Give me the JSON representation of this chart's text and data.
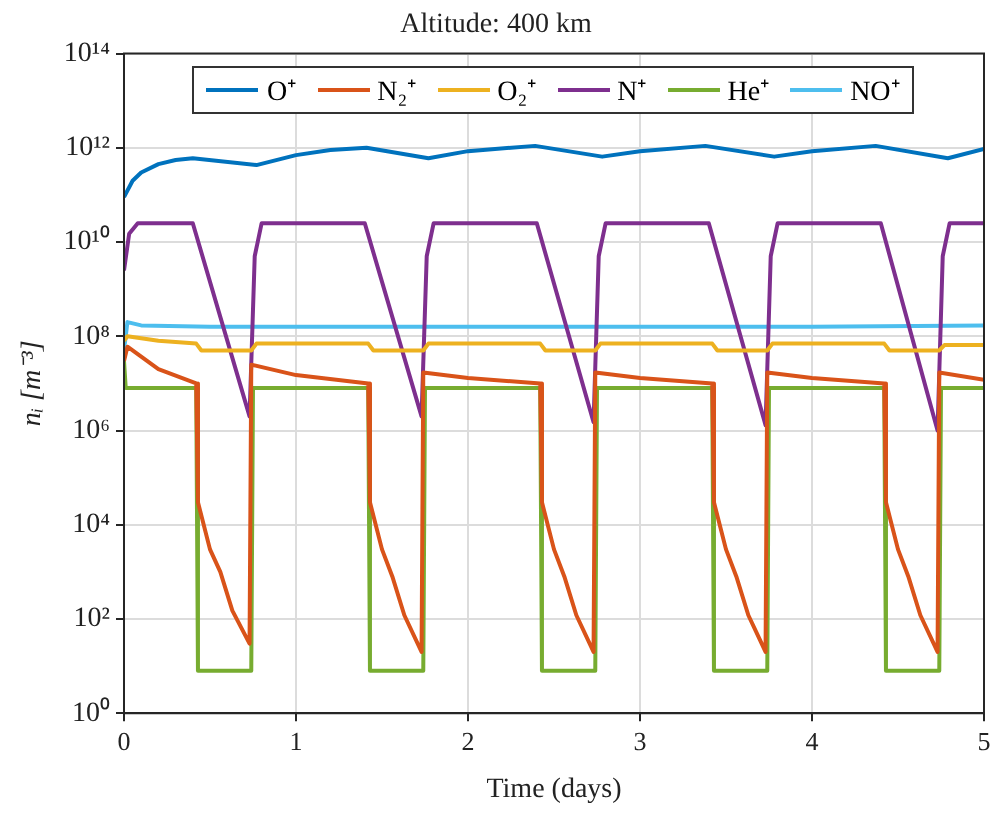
{
  "chart_data": {
    "type": "line",
    "title": "Altitude: 400 km",
    "xlabel": "Time (days)",
    "ylabel": "nᵢ [m⁻³]",
    "log": "y",
    "grid": true,
    "legend": "top",
    "marker": "none",
    "line_style": "solid",
    "xlim": [
      0,
      5
    ],
    "xticks": [
      0,
      1,
      2,
      3,
      4,
      5
    ],
    "ylim": [
      1,
      100000000000000
    ],
    "yticks": [
      {
        "value": 1,
        "label": "10⁰"
      },
      {
        "value": 100,
        "label": "10²"
      },
      {
        "value": 10000,
        "label": "10⁴"
      },
      {
        "value": 1000000,
        "label": "10⁶"
      },
      {
        "value": 100000000,
        "label": "10⁸"
      },
      {
        "value": 10000000000,
        "label": "10¹⁰"
      },
      {
        "value": 1000000000000,
        "label": "10¹²"
      },
      {
        "value": 100000000000000,
        "label": "10¹⁴"
      }
    ],
    "series": [
      {
        "name": "O⁺",
        "color": "#0072bd",
        "x": [
          0,
          0.05,
          0.1,
          0.2,
          0.3,
          0.4,
          0.77,
          1.0,
          1.2,
          1.41,
          1.77,
          2.0,
          2.39,
          2.78,
          3.0,
          3.38,
          3.78,
          4.0,
          4.37,
          4.79,
          5
        ],
        "values": [
          90000000000,
          200000000000,
          300000000000,
          450000000000,
          550000000000,
          600000000000,
          430000000000,
          700000000000,
          900000000000,
          1000000000000,
          600000000000,
          850000000000,
          1100000000000,
          650000000000,
          850000000000,
          1100000000000,
          650000000000,
          850000000000,
          1100000000000,
          600000000000,
          950000000000
        ]
      },
      {
        "name": "N₂⁺",
        "color": "#d95319",
        "x": [
          0,
          0.02,
          0.2,
          0.42,
          0.43,
          0.5,
          0.56,
          0.63,
          0.73,
          0.74,
          1.0,
          1.42,
          1.43,
          1.5,
          1.56,
          1.63,
          1.73,
          1.74,
          2.0,
          2.42,
          2.43,
          2.5,
          2.56,
          2.63,
          2.73,
          2.74,
          3.0,
          3.42,
          3.43,
          3.5,
          3.56,
          3.63,
          3.73,
          3.74,
          4.0,
          4.42,
          4.43,
          4.5,
          4.56,
          4.63,
          4.73,
          4.74,
          5
        ],
        "values": [
          30000000,
          60000000,
          20000000,
          10000000,
          30000,
          3000,
          1000,
          150,
          30,
          25000000,
          15000000,
          10000000,
          30000,
          3000,
          800,
          120,
          20,
          17000000,
          13000000,
          10000000,
          30000,
          3000,
          800,
          120,
          20,
          17000000,
          13000000,
          10000000,
          30000,
          3000,
          800,
          120,
          20,
          17000000,
          13000000,
          10000000,
          30000,
          3000,
          800,
          120,
          20,
          17000000,
          12000000
        ]
      },
      {
        "name": "O₂⁺",
        "color": "#edb120",
        "x": [
          0,
          0.02,
          0.2,
          0.42,
          0.45,
          0.74,
          0.77,
          1.42,
          1.45,
          1.74,
          1.77,
          2.42,
          2.45,
          2.74,
          2.77,
          3.42,
          3.45,
          3.74,
          3.77,
          4.42,
          4.45,
          4.74,
          4.77,
          5
        ],
        "values": [
          80000000,
          100000000,
          80000000,
          70000000,
          50000000,
          50000000,
          70000000,
          70000000,
          50000000,
          50000000,
          70000000,
          70000000,
          50000000,
          50000000,
          70000000,
          70000000,
          50000000,
          50000000,
          70000000,
          70000000,
          50000000,
          50000000,
          65000000,
          65000000
        ]
      },
      {
        "name": "N⁺",
        "color": "#7e2f8e",
        "x": [
          0,
          0.03,
          0.08,
          0.4,
          0.73,
          0.76,
          0.8,
          1.4,
          1.73,
          1.76,
          1.8,
          2.4,
          2.73,
          2.76,
          2.8,
          3.4,
          3.73,
          3.76,
          3.8,
          4.4,
          4.73,
          4.76,
          4.8,
          5
        ],
        "values": [
          2500000000,
          15000000000,
          25000000000,
          25000000000,
          2000000,
          5000000000,
          25000000000,
          25000000000,
          2000000,
          5000000000,
          25000000000,
          25000000000,
          1500000,
          5000000000,
          25000000000,
          25000000000,
          1300000,
          5000000000,
          25000000000,
          25000000000,
          1000000,
          5000000000,
          25000000000,
          25000000000
        ]
      },
      {
        "name": "He⁺",
        "color": "#77ac30",
        "x": [
          0,
          0.01,
          0.42,
          0.43,
          0.74,
          0.75,
          1.42,
          1.43,
          1.74,
          1.75,
          2.42,
          2.43,
          2.74,
          2.75,
          3.42,
          3.43,
          3.74,
          3.75,
          4.42,
          4.43,
          4.74,
          4.75,
          5
        ],
        "values": [
          30000000,
          8000000,
          8000000,
          8,
          8,
          8000000,
          8000000,
          8,
          8,
          8000000,
          8000000,
          8,
          8,
          8000000,
          8000000,
          8,
          8,
          8000000,
          8000000,
          8,
          8,
          8000000,
          8000000
        ]
      },
      {
        "name": "NO⁺",
        "color": "#4dbeee",
        "x": [
          0,
          0.02,
          0.1,
          0.5,
          1,
          2,
          3,
          4,
          5
        ],
        "values": [
          50000000,
          200000000,
          170000000,
          160000000,
          160000000,
          160000000,
          160000000,
          160000000,
          170000000
        ]
      }
    ]
  }
}
